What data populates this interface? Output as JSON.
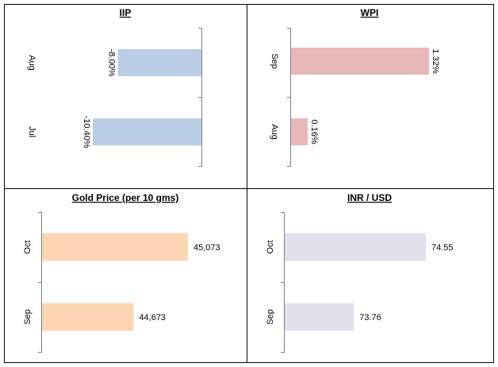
{
  "chart_data": [
    {
      "type": "bar",
      "title": "IIP",
      "categories": [
        "Aug",
        "Jul"
      ],
      "values": [
        -8.0,
        -10.4
      ],
      "value_labels": [
        "-8.00%",
        "-10.40%"
      ],
      "xlim": [
        -10.4,
        0
      ],
      "color": "#b9cde5",
      "orientation": "horizontal",
      "label_rotation": "rotated"
    },
    {
      "type": "bar",
      "title": "WPI",
      "categories": [
        "Sep",
        "Aug"
      ],
      "values": [
        1.32,
        0.16
      ],
      "value_labels": [
        "1.32%",
        "0.16%"
      ],
      "xlim": [
        0,
        1.32
      ],
      "color": "#e6b9b8",
      "orientation": "horizontal",
      "label_rotation": "rotated"
    },
    {
      "type": "bar",
      "title": "Gold Price (per 10 gms)",
      "categories": [
        "Oct",
        "Sep"
      ],
      "values": [
        45073,
        44673
      ],
      "value_labels": [
        "45,073",
        "44,673"
      ],
      "xlim": [
        44000,
        45073
      ],
      "color": "#fcd5b5",
      "orientation": "horizontal",
      "label_rotation": "none"
    },
    {
      "type": "bar",
      "title": "INR / USD",
      "categories": [
        "Oct",
        "Sep"
      ],
      "values": [
        74.55,
        73.76
      ],
      "value_labels": [
        "74.55",
        "73.76"
      ],
      "xlim": [
        73,
        74.55
      ],
      "color": "#e4dfec",
      "orientation": "horizontal",
      "label_rotation": "none"
    }
  ]
}
